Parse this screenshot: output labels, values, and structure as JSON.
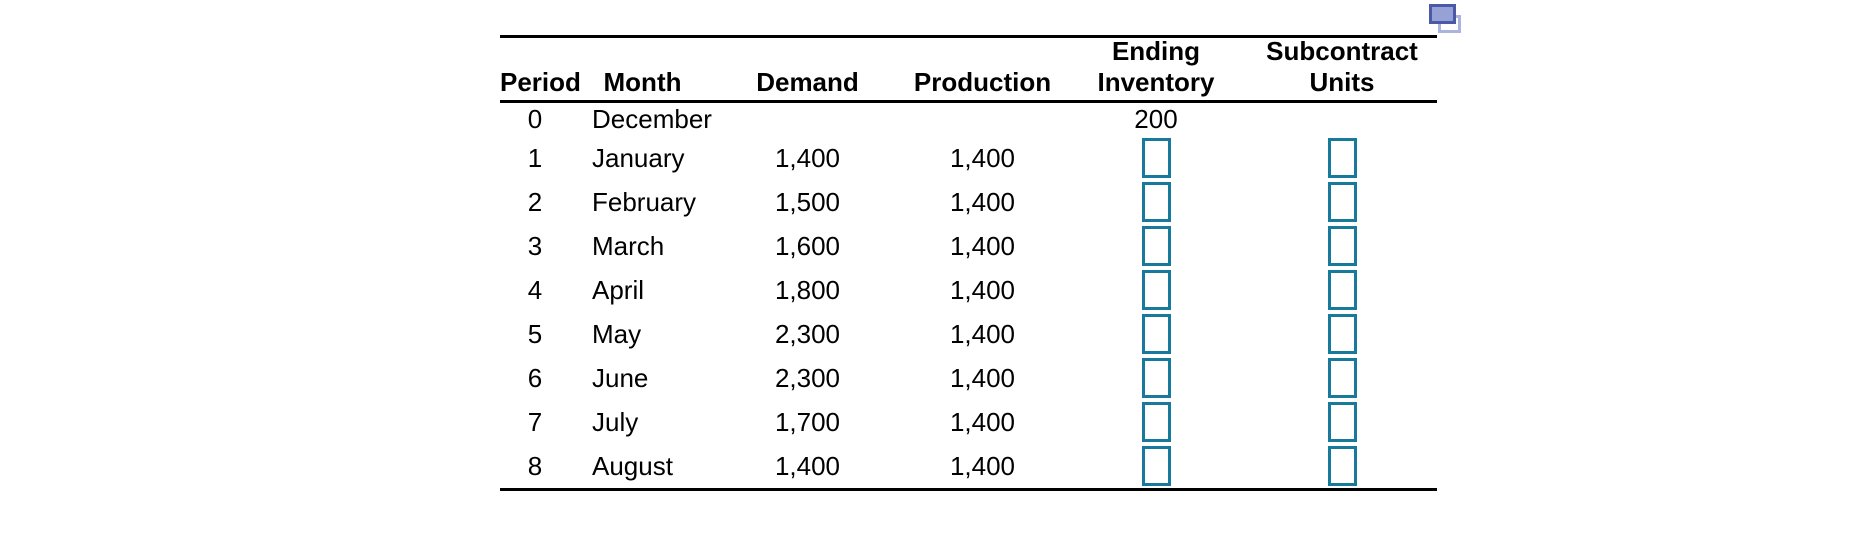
{
  "icons": {
    "top_right": "copy-icon"
  },
  "colors": {
    "answer_box_border": "#17799c",
    "copy_icon_front_border": "#4c59a6",
    "copy_icon_front_fill": "#96a1d5",
    "copy_icon_back_border": "#aab4de",
    "rule": "#000000",
    "text": "#000000"
  },
  "table": {
    "header": {
      "period": "Period",
      "month": "Month",
      "demand": "Demand",
      "production": "Production",
      "ending_inventory_line1": "Ending",
      "ending_inventory_line2": "Inventory",
      "subcontract_units_line1": "Subcontract",
      "subcontract_units_line2": "Units"
    },
    "rows": [
      {
        "period": "0",
        "month": "December",
        "demand": "",
        "production": "",
        "inventory_text": "200",
        "has_input_boxes": false
      },
      {
        "period": "1",
        "month": "January",
        "demand": "1,400",
        "production": "1,400",
        "inventory_text": "",
        "has_input_boxes": true
      },
      {
        "period": "2",
        "month": "February",
        "demand": "1,500",
        "production": "1,400",
        "inventory_text": "",
        "has_input_boxes": true
      },
      {
        "period": "3",
        "month": "March",
        "demand": "1,600",
        "production": "1,400",
        "inventory_text": "",
        "has_input_boxes": true
      },
      {
        "period": "4",
        "month": "April",
        "demand": "1,800",
        "production": "1,400",
        "inventory_text": "",
        "has_input_boxes": true
      },
      {
        "period": "5",
        "month": "May",
        "demand": "2,300",
        "production": "1,400",
        "inventory_text": "",
        "has_input_boxes": true
      },
      {
        "period": "6",
        "month": "June",
        "demand": "2,300",
        "production": "1,400",
        "inventory_text": "",
        "has_input_boxes": true
      },
      {
        "period": "7",
        "month": "July",
        "demand": "1,700",
        "production": "1,400",
        "inventory_text": "",
        "has_input_boxes": true
      },
      {
        "period": "8",
        "month": "August",
        "demand": "1,400",
        "production": "1,400",
        "inventory_text": "",
        "has_input_boxes": true
      }
    ]
  }
}
